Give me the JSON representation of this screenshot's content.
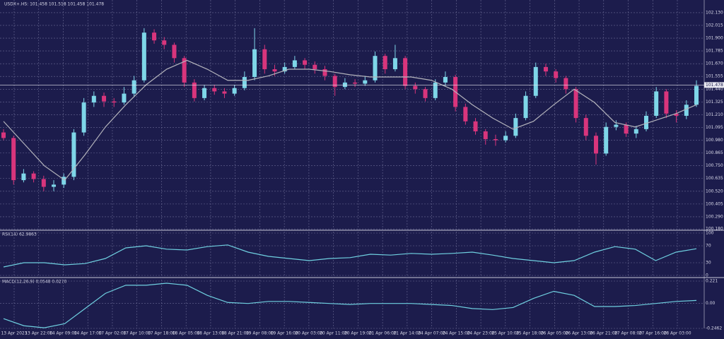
{
  "chart_data": {
    "type": "candlestick",
    "header": "USDX+.HS: 101.458 101.518 101.458 101.478",
    "up_color": "#7ed6e8",
    "down_color": "#d8357c",
    "ma_color": "#b4b4bc",
    "indicator_color": "#6fd0e0",
    "grid": true,
    "ylim": [
      100.175,
      102.244
    ],
    "yticks": [
      {
        "value": 102.13,
        "label": "102.130"
      },
      102.015,
      {
        "value": 101.9,
        "label": "101.900"
      },
      101.785,
      {
        "value": 101.67,
        "label": "101.670"
      },
      101.555,
      {
        "value": 101.44,
        "label": "101.440"
      },
      101.325,
      {
        "value": 101.21,
        "label": "101.210"
      },
      101.095,
      {
        "value": 100.98,
        "label": "100.980"
      },
      100.865,
      {
        "value": 100.75,
        "label": "100.750"
      },
      100.635,
      {
        "value": 100.52,
        "label": "100.520"
      },
      100.405,
      {
        "value": 100.29,
        "label": "100.290"
      },
      {
        "value": 100.18,
        "label": "100.180"
      }
    ],
    "last_price": 101.478,
    "x_labels": [
      "13 Apr 2023",
      "13 Apr 22:00",
      "14 Apr 09:00",
      "14 Apr 17:00",
      "17 Apr 02:00",
      "17 Apr 10:00",
      "17 Apr 18:00",
      "18 Apr 05:00",
      "18 Apr 13:00",
      "18 Apr 21:00",
      "19 Apr 08:00",
      "19 Apr 16:00",
      "20 Apr 03:00",
      "20 Apr 11:00",
      "20 Apr 19:00",
      "21 Apr 06:00",
      "21 Apr 14:00",
      "24 Apr 07:00",
      "24 Apr 15:00",
      "24 Apr 23:00",
      "25 Apr 10:00",
      "25 Apr 18:00",
      "26 Apr 05:00",
      "26 Apr 13:00",
      "26 Apr 21:00",
      "27 Apr 08:00",
      "27 Apr 16:00",
      "28 Apr 03:00"
    ],
    "candles": [
      [
        101.05,
        101.08,
        100.98,
        101.0
      ],
      [
        101.0,
        101.02,
        100.58,
        100.62
      ],
      [
        100.62,
        100.72,
        100.6,
        100.68
      ],
      [
        100.68,
        100.7,
        100.6,
        100.63
      ],
      [
        100.63,
        100.66,
        100.52,
        100.56
      ],
      [
        100.56,
        100.62,
        100.52,
        100.58
      ],
      [
        100.58,
        100.68,
        100.55,
        100.65
      ],
      [
        100.65,
        101.08,
        100.62,
        101.05
      ],
      [
        101.05,
        101.36,
        101.02,
        101.32
      ],
      [
        101.32,
        101.42,
        101.28,
        101.38
      ],
      [
        101.38,
        101.41,
        101.28,
        101.33
      ],
      [
        101.33,
        101.36,
        101.28,
        101.32
      ],
      [
        101.32,
        101.46,
        101.3,
        101.4
      ],
      [
        101.4,
        101.56,
        101.37,
        101.52
      ],
      [
        101.52,
        101.99,
        101.5,
        101.95
      ],
      [
        101.95,
        101.98,
        101.85,
        101.88
      ],
      [
        101.88,
        101.91,
        101.8,
        101.84
      ],
      [
        101.84,
        101.86,
        101.68,
        101.72
      ],
      [
        101.72,
        101.74,
        101.46,
        101.5
      ],
      [
        101.5,
        101.53,
        101.33,
        101.36
      ],
      [
        101.36,
        101.48,
        101.34,
        101.45
      ],
      [
        101.45,
        101.48,
        101.39,
        101.42
      ],
      [
        101.42,
        101.45,
        101.36,
        101.4
      ],
      [
        101.4,
        101.48,
        101.38,
        101.45
      ],
      [
        101.45,
        101.6,
        101.43,
        101.55
      ],
      [
        101.55,
        101.99,
        101.52,
        101.8
      ],
      [
        101.8,
        101.84,
        101.58,
        101.62
      ],
      [
        101.62,
        101.66,
        101.56,
        101.6
      ],
      [
        101.6,
        101.68,
        101.58,
        101.64
      ],
      [
        101.64,
        101.74,
        101.62,
        101.7
      ],
      [
        101.7,
        101.72,
        101.62,
        101.66
      ],
      [
        101.66,
        101.69,
        101.58,
        101.62
      ],
      [
        101.62,
        101.65,
        101.52,
        101.56
      ],
      [
        101.56,
        101.58,
        101.38,
        101.46
      ],
      [
        101.46,
        101.54,
        101.44,
        101.5
      ],
      [
        101.5,
        101.53,
        101.46,
        101.49
      ],
      [
        101.49,
        101.56,
        101.47,
        101.52
      ],
      [
        101.52,
        101.78,
        101.5,
        101.74
      ],
      [
        101.74,
        101.76,
        101.58,
        101.62
      ],
      [
        101.62,
        101.84,
        101.6,
        101.72
      ],
      [
        101.72,
        101.74,
        101.44,
        101.47
      ],
      [
        101.47,
        101.5,
        101.4,
        101.44
      ],
      [
        101.44,
        101.46,
        101.33,
        101.36
      ],
      [
        101.36,
        101.53,
        101.34,
        101.5
      ],
      [
        101.5,
        101.6,
        101.47,
        101.55
      ],
      [
        101.55,
        101.57,
        101.24,
        101.28
      ],
      [
        101.28,
        101.31,
        101.12,
        101.15
      ],
      [
        101.15,
        101.18,
        101.03,
        101.06
      ],
      [
        101.06,
        101.08,
        100.94,
        100.99
      ],
      [
        100.99,
        101.03,
        100.93,
        100.98
      ],
      [
        100.98,
        101.06,
        100.96,
        101.02
      ],
      [
        101.02,
        101.22,
        101.0,
        101.18
      ],
      [
        101.18,
        101.42,
        101.16,
        101.38
      ],
      [
        101.38,
        101.68,
        101.36,
        101.64
      ],
      [
        101.64,
        101.67,
        101.56,
        101.6
      ],
      [
        101.6,
        101.62,
        101.5,
        101.54
      ],
      [
        101.54,
        101.56,
        101.4,
        101.44
      ],
      [
        101.44,
        101.46,
        101.14,
        101.18
      ],
      [
        101.18,
        101.21,
        100.98,
        101.02
      ],
      [
        101.02,
        101.05,
        100.76,
        100.86
      ],
      [
        100.86,
        101.14,
        100.84,
        101.1
      ],
      [
        101.1,
        101.16,
        101.07,
        101.12
      ],
      [
        101.12,
        101.14,
        101.01,
        101.04
      ],
      [
        101.04,
        101.11,
        101.0,
        101.08
      ],
      [
        101.08,
        101.24,
        101.06,
        101.2
      ],
      [
        101.2,
        101.46,
        101.18,
        101.42
      ],
      [
        101.42,
        101.44,
        101.18,
        101.22
      ],
      [
        101.22,
        101.25,
        101.14,
        101.2
      ],
      [
        101.2,
        101.34,
        101.17,
        101.3
      ],
      [
        101.3,
        101.52,
        101.28,
        101.47
      ]
    ],
    "ma_values": [
      101.15,
      100.95,
      100.75,
      100.62,
      100.85,
      101.1,
      101.3,
      101.48,
      101.62,
      101.7,
      101.62,
      101.52,
      101.52,
      101.56,
      101.62,
      101.62,
      101.6,
      101.57,
      101.55,
      101.55,
      101.55,
      101.52,
      101.44,
      101.3,
      101.18,
      101.08,
      101.15,
      101.3,
      101.44,
      101.32,
      101.14,
      101.1,
      101.16,
      101.22,
      101.3
    ],
    "rsi": {
      "title": "RSI(14) 62.9863",
      "ylim": [
        0,
        100
      ],
      "yticks": [
        100,
        70,
        30,
        0
      ],
      "values": [
        20,
        30,
        30,
        25,
        28,
        40,
        65,
        70,
        62,
        60,
        68,
        72,
        55,
        45,
        40,
        35,
        40,
        42,
        50,
        48,
        52,
        50,
        52,
        55,
        48,
        40,
        35,
        30,
        35,
        55,
        68,
        62,
        35,
        55,
        63
      ]
    },
    "macd": {
      "title": "MACD(12,26,9) 0.0548 0.0270",
      "ylim": [
        -0.2462,
        0.221
      ],
      "yticks": [
        0.221,
        {
          "value": 0,
          "label": "0.00"
        },
        -0.2462
      ],
      "values": [
        -0.15,
        -0.22,
        -0.24,
        -0.2,
        -0.05,
        0.1,
        0.18,
        0.18,
        0.2,
        0.18,
        0.08,
        0.01,
        0.0,
        0.02,
        0.02,
        0.01,
        0.0,
        -0.01,
        0.0,
        0.0,
        0.0,
        -0.01,
        -0.02,
        -0.05,
        -0.06,
        -0.04,
        0.05,
        0.12,
        0.08,
        -0.03,
        -0.03,
        -0.02,
        0.0,
        0.02,
        0.03
      ]
    }
  }
}
